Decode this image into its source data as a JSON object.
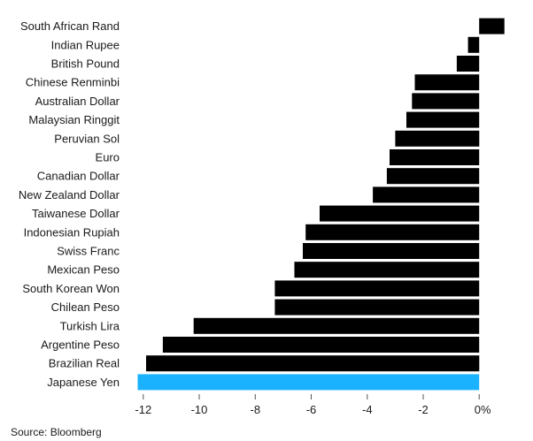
{
  "chart_data": {
    "type": "bar",
    "orientation": "horizontal",
    "categories": [
      "South African Rand",
      "Indian Rupee",
      "British Pound",
      "Chinese Renminbi",
      "Australian Dollar",
      "Malaysian Ringgit",
      "Peruvian Sol",
      "Euro",
      "Canadian Dollar",
      "New Zealand Dollar",
      "Taiwanese Dollar",
      "Indonesian Rupiah",
      "Swiss Franc",
      "Mexican Peso",
      "South Korean Won",
      "Chilean Peso",
      "Turkish Lira",
      "Argentine Peso",
      "Brazilian Real",
      "Japanese Yen"
    ],
    "values": [
      0.9,
      -0.4,
      -0.8,
      -2.3,
      -2.4,
      -2.6,
      -3.0,
      -3.2,
      -3.3,
      -3.8,
      -5.7,
      -6.2,
      -6.3,
      -6.6,
      -7.3,
      -7.3,
      -10.2,
      -11.3,
      -11.9,
      -12.2
    ],
    "highlight_category": "Japanese Yen",
    "colors": {
      "default": "#000000",
      "highlight": "#1ab2ff"
    },
    "xlim": [
      -12.5,
      1.1
    ],
    "xticks": [
      -12,
      -10,
      -8,
      -6,
      -4,
      -2,
      0
    ],
    "xtick_labels": [
      "-12",
      "-10",
      "-8",
      "-6",
      "-4",
      "-2",
      "0%"
    ],
    "grid": false,
    "legend": "none"
  },
  "source": "Source: Bloomberg"
}
